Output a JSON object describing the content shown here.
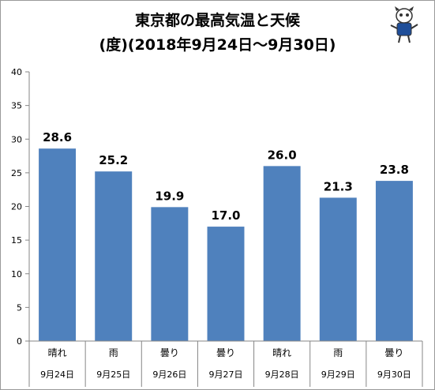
{
  "chart_data": {
    "type": "bar",
    "title_line1": "東京都の最高気温と天候",
    "title_line2": "(度)(2018年9月24日～9月30日)",
    "categories": [
      "9月24日",
      "9月25日",
      "9月26日",
      "9月27日",
      "9月28日",
      "9月29日",
      "9月30日"
    ],
    "weather": [
      "晴れ",
      "雨",
      "曇り",
      "曇り",
      "晴れ",
      "雨",
      "曇り"
    ],
    "values": [
      28.6,
      25.2,
      19.9,
      17.0,
      26.0,
      21.3,
      23.8
    ],
    "value_labels": [
      "28.6",
      "25.2",
      "19.9",
      "17.0",
      "26.0",
      "21.3",
      "23.8"
    ],
    "y_ticks": [
      "0",
      "5",
      "10",
      "15",
      "20",
      "25",
      "30",
      "35",
      "40"
    ],
    "ylim": [
      0,
      40
    ],
    "grid": false,
    "legend": "none",
    "colors": {
      "bar": "#4f81bd",
      "axis": "#868686",
      "text": "#000000"
    }
  }
}
